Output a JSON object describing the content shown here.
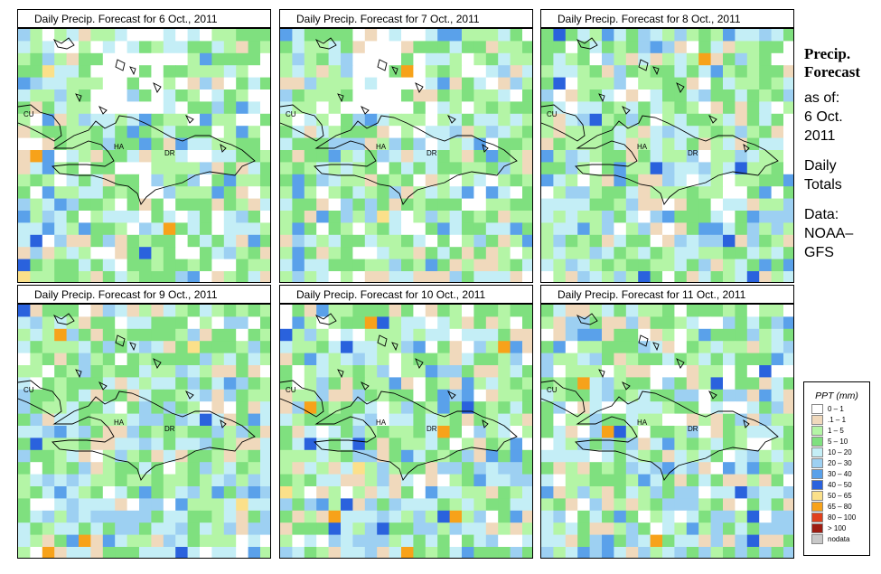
{
  "panels": [
    {
      "title": "Daily Precip. Forecast for  6 Oct., 2011",
      "seed": 11,
      "wet": 0.0
    },
    {
      "title": "Daily Precip. Forecast for  7 Oct., 2011",
      "seed": 23,
      "wet": 0.15
    },
    {
      "title": "Daily Precip. Forecast for  8 Oct., 2011",
      "seed": 37,
      "wet": 0.35
    },
    {
      "title": "Daily Precip. Forecast for  9 Oct., 2011",
      "seed": 41,
      "wet": 0.45
    },
    {
      "title": "Daily Precip. Forecast for  10 Oct., 2011",
      "seed": 53,
      "wet": 0.55
    },
    {
      "title": "Daily Precip. Forecast for  11 Oct., 2011",
      "seed": 67,
      "wet": 0.6
    }
  ],
  "map_labels": {
    "cu": "CU",
    "ha": "HA",
    "dr": "DR"
  },
  "sidebar": {
    "title_line1": "Precip.",
    "title_line2": "Forecast",
    "as_of": "as of:",
    "date_line1": "6 Oct.",
    "date_line2": "2011",
    "totals_line1": "Daily",
    "totals_line2": "Totals",
    "data_line1": "Data:",
    "data_line2": "NOAA–",
    "data_line3": "GFS"
  },
  "legend": {
    "title": "PPT (mm)",
    "items": [
      {
        "label": "0 – 1",
        "color": "#ffffff"
      },
      {
        "label": ".1 – 1",
        "color": "#f0d9bc"
      },
      {
        "label": "1 – 5",
        "color": "#b4f5a6"
      },
      {
        "label": "5 – 10",
        "color": "#7fe07f"
      },
      {
        "label": "10 – 20",
        "color": "#c4eef6"
      },
      {
        "label": "20 – 30",
        "color": "#9dd0f2"
      },
      {
        "label": "30 – 40",
        "color": "#5aa1ea"
      },
      {
        "label": "40 – 50",
        "color": "#2a62dd"
      },
      {
        "label": "50 – 65",
        "color": "#fbe08a"
      },
      {
        "label": "65 – 80",
        "color": "#f7a21a"
      },
      {
        "label": "80 – 100",
        "color": "#e0401c"
      },
      {
        "label": "> 100",
        "color": "#9e1d12"
      },
      {
        "label": "nodata",
        "color": "#c8c8c8"
      }
    ]
  }
}
